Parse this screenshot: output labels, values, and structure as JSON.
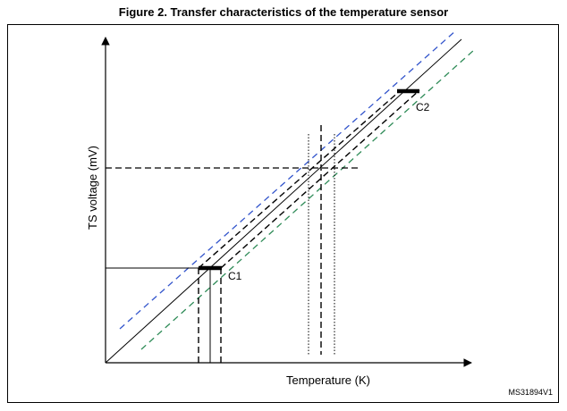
{
  "figure": {
    "title": "Figure 2. Transfer characteristics of the temperature sensor",
    "id_code": "MS31894V1"
  },
  "axes": {
    "x_label": "Temperature  (K)",
    "y_label": "TS voltage (mV)"
  },
  "points": {
    "c1_label": "C1",
    "c2_label": "C2"
  },
  "colors": {
    "axis": "#000000",
    "upper_dashed": "#3355cc",
    "lower_dashed": "#2e8b57",
    "ideal": "#000000"
  }
}
